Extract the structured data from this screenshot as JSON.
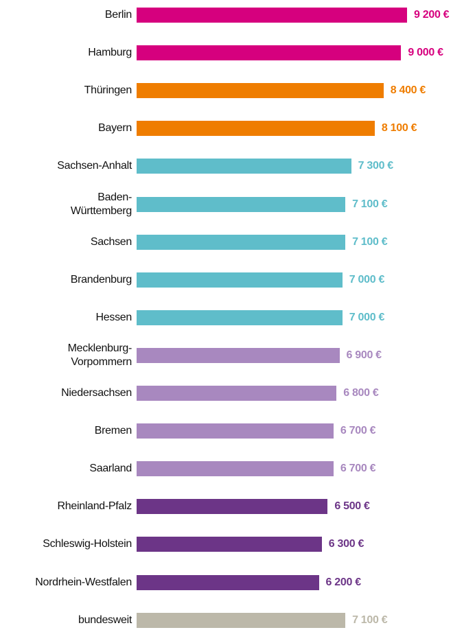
{
  "chart_data": {
    "type": "bar",
    "orientation": "horizontal",
    "categories": [
      "Berlin",
      "Hamburg",
      "Thüringen",
      "Bayern",
      "Sachsen-Anhalt",
      "Baden-\nWürttemberg",
      "Sachsen",
      "Brandenburg",
      "Hessen",
      "Mecklenburg-\nVorpommern",
      "Niedersachsen",
      "Bremen",
      "Saarland",
      "Rheinland-Pfalz",
      "Schleswig-Holstein",
      "Nordrhein-Westfalen",
      "bundesweit"
    ],
    "values": [
      9200,
      9000,
      8400,
      8100,
      7300,
      7100,
      7100,
      7000,
      7000,
      6900,
      6800,
      6700,
      6700,
      6500,
      6300,
      6200,
      7100
    ],
    "value_labels": [
      "9 200 €",
      "9 000 €",
      "8 400 €",
      "8 100 €",
      "7 300 €",
      "7 100 €",
      "7 100 €",
      "7 000 €",
      "7 000 €",
      "6 900 €",
      "6 800 €",
      "6 700 €",
      "6 700 €",
      "6 500 €",
      "6 300 €",
      "6 200 €",
      "7 100 €"
    ],
    "colors": [
      "#d6007e",
      "#d6007e",
      "#ef7d00",
      "#ef7d00",
      "#5fbdca",
      "#5fbdca",
      "#5fbdca",
      "#5fbdca",
      "#5fbdca",
      "#a888bf",
      "#a888bf",
      "#a888bf",
      "#a888bf",
      "#6c3587",
      "#6c3587",
      "#6c3587",
      "#bcb8a9"
    ]
  }
}
